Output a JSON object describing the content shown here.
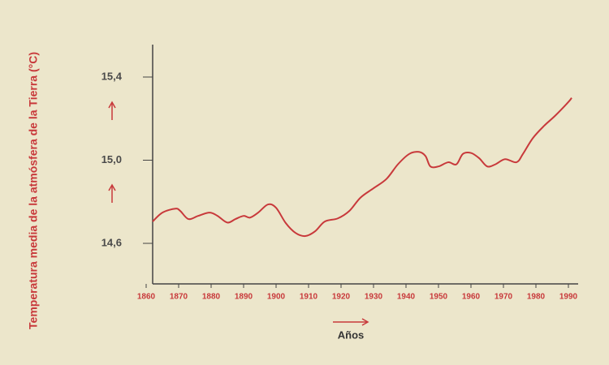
{
  "chart_data": {
    "type": "line",
    "ylabel": "Temperatura media de la atmósfera de la Tierra (°C)",
    "xlabel": "Años",
    "color": "#c8393b",
    "x": [
      1862,
      1865,
      1869,
      1870.5,
      1873,
      1876,
      1879.5,
      1882,
      1885,
      1887.5,
      1890,
      1892,
      1894.5,
      1897.5,
      1900,
      1903,
      1906,
      1909,
      1912,
      1915,
      1919,
      1922.5,
      1926,
      1930,
      1934,
      1937.5,
      1941,
      1944,
      1946,
      1947.5,
      1950,
      1953,
      1955.5,
      1957.5,
      1960,
      1962.5,
      1965,
      1967.5,
      1970.5,
      1974,
      1976,
      1979,
      1982.5,
      1986,
      1990,
      1991
    ],
    "values": [
      14.705,
      14.748,
      14.767,
      14.756,
      14.717,
      14.732,
      14.748,
      14.732,
      14.7,
      14.717,
      14.732,
      14.724,
      14.748,
      14.787,
      14.771,
      14.697,
      14.65,
      14.635,
      14.658,
      14.705,
      14.72,
      14.755,
      14.82,
      14.865,
      14.91,
      14.98,
      15.03,
      15.04,
      15.02,
      14.97,
      14.97,
      14.99,
      14.98,
      15.03,
      15.035,
      15.01,
      14.97,
      14.98,
      15.005,
      14.99,
      15.03,
      15.105,
      15.165,
      15.215,
      15.28,
      15.3
    ],
    "xlim": [
      1860,
      1990
    ],
    "xticks": [
      1860,
      1870,
      1880,
      1890,
      1900,
      1910,
      1920,
      1930,
      1940,
      1950,
      1960,
      1970,
      1980,
      1990
    ],
    "ylim": [
      14.405,
      15.556
    ],
    "yticks": [
      {
        "value": 14.6,
        "label": "14,6"
      },
      {
        "value": 15.0,
        "label": "15,0"
      },
      {
        "value": 15.4,
        "label": "15,4"
      }
    ]
  }
}
